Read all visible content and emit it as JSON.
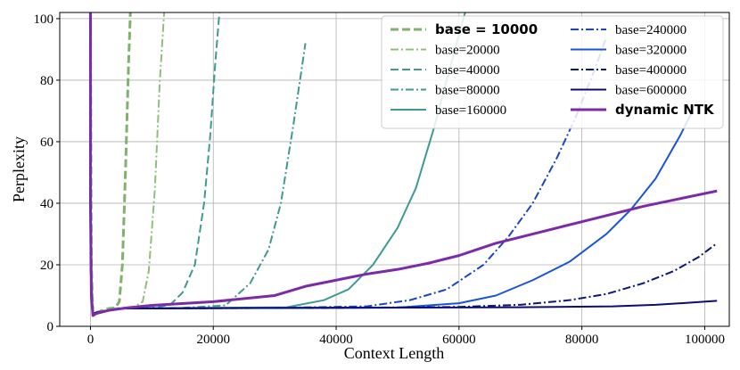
{
  "chart_data": {
    "type": "line",
    "title": "",
    "xlabel": "Context Length",
    "ylabel": "Perplexity",
    "xlim": [
      -5000,
      104000
    ],
    "ylim": [
      0,
      102
    ],
    "xticks": [
      0,
      20000,
      40000,
      60000,
      80000,
      100000
    ],
    "xtick_labels": [
      "0",
      "20000",
      "40000",
      "60000",
      "80000",
      "100000"
    ],
    "yticks": [
      0,
      20,
      40,
      60,
      80,
      100
    ],
    "ytick_labels": [
      "0",
      "20",
      "40",
      "60",
      "80",
      "100"
    ],
    "grid": true,
    "legend_position": "top-right",
    "series": [
      {
        "name": "base = 10000",
        "color": "#7fb26a",
        "dash": "dashed",
        "bold": true,
        "x": [
          0,
          150,
          400,
          1000,
          2000,
          3000,
          4000,
          4700,
          5200,
          5700,
          6200,
          6500
        ],
        "y": [
          101,
          20,
          4,
          4.5,
          5.2,
          5.8,
          6,
          8,
          20,
          50,
          85,
          102
        ]
      },
      {
        "name": "base=20000",
        "color": "#8fbf7a",
        "dash": "dashdot",
        "bold": false,
        "x": [
          0,
          150,
          400,
          1000,
          3000,
          5000,
          7000,
          8500,
          9500,
          10500,
          11300,
          12000
        ],
        "y": [
          101,
          20,
          4,
          4.5,
          5.6,
          6,
          6.2,
          8,
          18,
          45,
          80,
          102
        ]
      },
      {
        "name": "base=40000",
        "color": "#3f9a90",
        "dash": "dashed",
        "bold": false,
        "x": [
          0,
          150,
          400,
          1000,
          5000,
          10000,
          13000,
          15000,
          17000,
          18500,
          19500,
          20300,
          21000
        ],
        "y": [
          24,
          10,
          4,
          4.5,
          5.8,
          6,
          7,
          11,
          20,
          40,
          62,
          85,
          102
        ]
      },
      {
        "name": "base=80000",
        "color": "#3f9a90",
        "dash": "dashdot",
        "bold": false,
        "x": [
          0,
          150,
          400,
          1000,
          5000,
          15000,
          22000,
          26000,
          29000,
          31000,
          33000,
          35000
        ],
        "y": [
          24,
          10,
          4,
          4.5,
          5.8,
          6,
          6.8,
          14,
          25,
          40,
          65,
          92
        ]
      },
      {
        "name": "base=160000",
        "color": "#3d9b92",
        "dash": "solid",
        "bold": false,
        "x": [
          0,
          150,
          400,
          1000,
          5000,
          20000,
          32000,
          38000,
          42000,
          46000,
          50000,
          53000,
          56000,
          58000,
          60000,
          61000
        ],
        "y": [
          24,
          10,
          4,
          4.5,
          5.8,
          6,
          6.2,
          8.5,
          12,
          20,
          32,
          45,
          65,
          80,
          95,
          102
        ]
      },
      {
        "name": "base=240000",
        "color": "#1a45c8",
        "dash": "dashdot",
        "bold": false,
        "x": [
          0,
          150,
          400,
          1000,
          5000,
          30000,
          45000,
          52000,
          58000,
          64000,
          68000,
          72000,
          76000,
          79000,
          82000,
          84000
        ],
        "y": [
          24,
          10,
          4,
          4.5,
          5.8,
          6,
          6.5,
          8.5,
          12,
          20,
          29,
          40,
          55,
          68,
          83,
          94
        ]
      },
      {
        "name": "base=320000",
        "color": "#1a55d8",
        "dash": "solid",
        "bold": false,
        "x": [
          0,
          150,
          400,
          1000,
          5000,
          30000,
          50000,
          60000,
          66000,
          72000,
          78000,
          84000,
          88000,
          92000,
          96000,
          98000
        ],
        "y": [
          24,
          10,
          4,
          4.5,
          5.8,
          6,
          6.1,
          7.5,
          10,
          15,
          21,
          30,
          38,
          48,
          62,
          70
        ]
      },
      {
        "name": "base=400000",
        "color": "#0a1870",
        "dash": "dashdot",
        "bold": false,
        "x": [
          0,
          150,
          400,
          1000,
          5000,
          40000,
          60000,
          70000,
          78000,
          84000,
          90000,
          95000,
          99000,
          102000
        ],
        "y": [
          38,
          10,
          4,
          4.5,
          5.8,
          6,
          6.3,
          7,
          8.5,
          10.5,
          14,
          18,
          22.5,
          27
        ]
      },
      {
        "name": "base=600000",
        "color": "#0c0c78",
        "dash": "solid",
        "bold": false,
        "x": [
          0,
          150,
          400,
          1000,
          5000,
          40000,
          70000,
          85000,
          92000,
          97000,
          102000
        ],
        "y": [
          44,
          10,
          4,
          4.5,
          5.8,
          6,
          6.2,
          6.5,
          7,
          7.6,
          8.3
        ]
      },
      {
        "name": "dynamic NTK",
        "color": "#7b2aa8",
        "dash": "solid",
        "bold": true,
        "x": [
          0,
          0,
          150,
          400,
          1000,
          3000,
          6000,
          10000,
          20000,
          30000,
          35000,
          40000,
          45000,
          50000,
          55000,
          60000,
          63000,
          66000,
          70000,
          80000,
          90000,
          102000
        ],
        "y": [
          102,
          40,
          10,
          3.5,
          4.2,
          5.2,
          6,
          6.8,
          8,
          10,
          13,
          15,
          17,
          18.5,
          20.5,
          23,
          25,
          27,
          29,
          34,
          39,
          44
        ]
      }
    ]
  }
}
